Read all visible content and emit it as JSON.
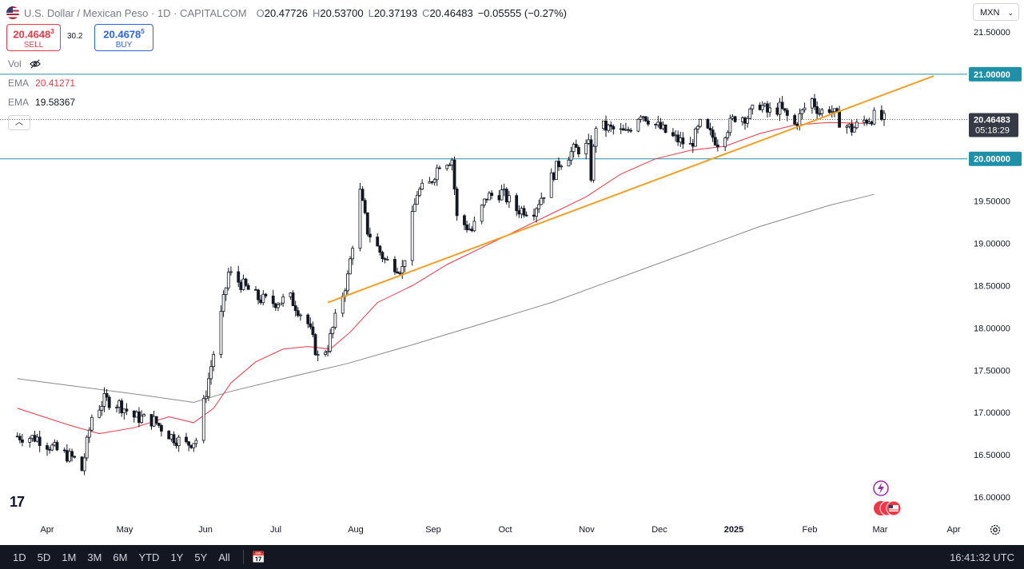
{
  "header": {
    "symbol": "U.S. Dollar / Mexican Peso · 1D · CAPITALCOM",
    "o_label": "O",
    "o_value": "20.47726",
    "h_label": "H",
    "h_value": "20.53700",
    "l_label": "L",
    "l_value": "20.37193",
    "c_label": "C",
    "c_value": "20.46483",
    "change": "−0.05555 (−0.27%)"
  },
  "trade": {
    "sell_price": "20.4648",
    "sell_sup": "3",
    "sell_label": "SELL",
    "spread": "30.2",
    "buy_price": "20.4678",
    "buy_sup": "5",
    "buy_label": "BUY"
  },
  "indicators": {
    "vol_label": "Vol",
    "ema1_label": "EMA",
    "ema1_value": "20.41271",
    "ema1_color": "#f23645",
    "ema2_label": "EMA",
    "ema2_value": "19.58367",
    "ema2_color": "#787b86"
  },
  "currency_menu": "MXN",
  "colors": {
    "horizontal_lines": "#1e90a8",
    "trendline": "#f0a020",
    "candles": "#131722",
    "ema_fast": "#f23645",
    "ema_slow": "#8a8a8a",
    "price_label_bg": "#363a45"
  },
  "chart_data": {
    "type": "candlestick",
    "x_labels": [
      "Apr",
      "May",
      "Jun",
      "Jul",
      "Aug",
      "Sep",
      "Oct",
      "Nov",
      "Dec",
      "2025",
      "Feb",
      "Mar",
      "Apr"
    ],
    "y_ticks": [
      "21.50000",
      "21.00000",
      "20.50000",
      "20.00000",
      "19.50000",
      "19.00000",
      "18.50000",
      "18.00000",
      "17.50000",
      "17.00000",
      "16.50000",
      "16.00000"
    ],
    "ylim": [
      15.75,
      21.8
    ],
    "horizontal_levels": [
      {
        "value": 21.0,
        "label": "21.00000"
      },
      {
        "value": 20.0,
        "label": "20.00000"
      }
    ],
    "last_price": {
      "value": 20.46483,
      "label": "20.46483",
      "countdown": "05:18:29"
    },
    "trendline": {
      "from": {
        "date": "2024-07-23",
        "value": 18.3
      },
      "to": {
        "date": "2025-03-24",
        "value": 20.98
      }
    },
    "close_path": [
      [
        "2024-03-20",
        16.72
      ],
      [
        "2024-03-28",
        16.7
      ],
      [
        "2024-04-05",
        16.55
      ],
      [
        "2024-04-12",
        16.45
      ],
      [
        "2024-04-15",
        16.32
      ],
      [
        "2024-04-19",
        16.95
      ],
      [
        "2024-04-24",
        17.15
      ],
      [
        "2024-04-30",
        17.1
      ],
      [
        "2024-05-06",
        16.95
      ],
      [
        "2024-05-14",
        16.9
      ],
      [
        "2024-05-21",
        16.72
      ],
      [
        "2024-05-27",
        16.62
      ],
      [
        "2024-05-31",
        16.68
      ],
      [
        "2024-06-03",
        17.1
      ],
      [
        "2024-06-06",
        17.55
      ],
      [
        "2024-06-10",
        18.15
      ],
      [
        "2024-06-13",
        18.65
      ],
      [
        "2024-06-17",
        18.55
      ],
      [
        "2024-06-25",
        18.35
      ],
      [
        "2024-07-01",
        18.3
      ],
      [
        "2024-07-08",
        18.35
      ],
      [
        "2024-07-15",
        18.05
      ],
      [
        "2024-07-19",
        17.65
      ],
      [
        "2024-07-23",
        17.78
      ],
      [
        "2024-07-26",
        18.1
      ],
      [
        "2024-07-31",
        18.6
      ],
      [
        "2024-08-05",
        19.6
      ],
      [
        "2024-08-08",
        19.15
      ],
      [
        "2024-08-15",
        18.8
      ],
      [
        "2024-08-22",
        18.7
      ],
      [
        "2024-08-28",
        19.6
      ],
      [
        "2024-09-02",
        19.7
      ],
      [
        "2024-09-06",
        19.95
      ],
      [
        "2024-09-11",
        20.0
      ],
      [
        "2024-09-13",
        19.3
      ],
      [
        "2024-09-19",
        19.15
      ],
      [
        "2024-09-25",
        19.55
      ],
      [
        "2024-10-01",
        19.6
      ],
      [
        "2024-10-07",
        19.4
      ],
      [
        "2024-10-14",
        19.4
      ],
      [
        "2024-10-18",
        19.6
      ],
      [
        "2024-10-24",
        19.95
      ],
      [
        "2024-10-30",
        20.1
      ],
      [
        "2024-11-05",
        20.15
      ],
      [
        "2024-11-06",
        19.8
      ],
      [
        "2024-11-08",
        20.4
      ],
      [
        "2024-11-14",
        20.35
      ],
      [
        "2024-11-20",
        20.3
      ],
      [
        "2024-11-26",
        20.55
      ],
      [
        "2024-12-02",
        20.4
      ],
      [
        "2024-12-09",
        20.25
      ],
      [
        "2024-12-16",
        20.15
      ],
      [
        "2024-12-20",
        20.4
      ],
      [
        "2024-12-27",
        20.2
      ],
      [
        "2025-01-03",
        20.5
      ],
      [
        "2025-01-08",
        20.5
      ],
      [
        "2025-01-13",
        20.65
      ],
      [
        "2025-01-16",
        20.55
      ],
      [
        "2025-01-21",
        20.6
      ],
      [
        "2025-01-27",
        20.4
      ],
      [
        "2025-01-31",
        20.6
      ],
      [
        "2025-02-03",
        20.7
      ],
      [
        "2025-02-06",
        20.55
      ],
      [
        "2025-02-10",
        20.6
      ],
      [
        "2025-02-14",
        20.45
      ],
      [
        "2025-02-19",
        20.35
      ],
      [
        "2025-02-24",
        20.45
      ],
      [
        "2025-02-28",
        20.5
      ],
      [
        "2025-03-04",
        20.46
      ]
    ],
    "ema_fast_path": [
      [
        "2024-03-20",
        17.05
      ],
      [
        "2024-04-10",
        16.85
      ],
      [
        "2024-04-22",
        16.75
      ],
      [
        "2024-05-06",
        16.82
      ],
      [
        "2024-05-20",
        16.95
      ],
      [
        "2024-05-30",
        16.88
      ],
      [
        "2024-06-07",
        17.05
      ],
      [
        "2024-06-14",
        17.35
      ],
      [
        "2024-06-24",
        17.6
      ],
      [
        "2024-07-05",
        17.75
      ],
      [
        "2024-07-15",
        17.78
      ],
      [
        "2024-07-24",
        17.75
      ],
      [
        "2024-08-01",
        17.95
      ],
      [
        "2024-08-12",
        18.3
      ],
      [
        "2024-08-26",
        18.5
      ],
      [
        "2024-09-09",
        18.75
      ],
      [
        "2024-09-23",
        18.95
      ],
      [
        "2024-10-07",
        19.15
      ],
      [
        "2024-10-21",
        19.35
      ],
      [
        "2024-11-04",
        19.55
      ],
      [
        "2024-11-18",
        19.82
      ],
      [
        "2024-12-02",
        20.0
      ],
      [
        "2024-12-16",
        20.1
      ],
      [
        "2024-12-30",
        20.15
      ],
      [
        "2025-01-13",
        20.3
      ],
      [
        "2025-01-27",
        20.4
      ],
      [
        "2025-02-10",
        20.43
      ],
      [
        "2025-02-24",
        20.42
      ]
    ],
    "ema_slow_path": [
      [
        "2024-03-20",
        17.4
      ],
      [
        "2024-04-15",
        17.3
      ],
      [
        "2024-05-06",
        17.22
      ],
      [
        "2024-05-30",
        17.12
      ],
      [
        "2024-06-14",
        17.25
      ],
      [
        "2024-07-05",
        17.4
      ],
      [
        "2024-07-31",
        17.58
      ],
      [
        "2024-08-26",
        17.8
      ],
      [
        "2024-09-23",
        18.05
      ],
      [
        "2024-10-21",
        18.3
      ],
      [
        "2024-11-18",
        18.6
      ],
      [
        "2024-12-16",
        18.9
      ],
      [
        "2025-01-13",
        19.2
      ],
      [
        "2025-02-10",
        19.45
      ],
      [
        "2025-02-28",
        19.58
      ]
    ],
    "grid": false,
    "legend": "top-left"
  },
  "bottom_bar": {
    "timeframes": [
      "1D",
      "5D",
      "1M",
      "3M",
      "6M",
      "YTD",
      "1Y",
      "5Y",
      "All"
    ],
    "clock": "16:41:32 UTC"
  }
}
